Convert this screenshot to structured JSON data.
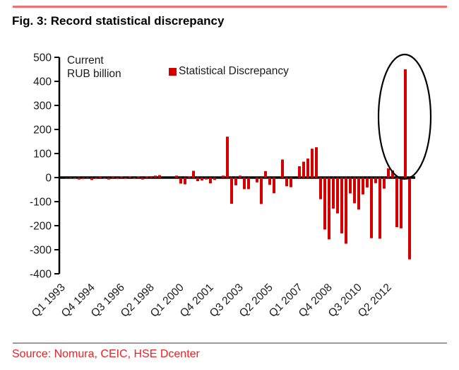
{
  "header": {
    "title": "Fig. 3: Record statistical discrepancy"
  },
  "chart": {
    "note_line1": "Current",
    "note_line2": "RUB billion",
    "legend_label": "Statistical Discrepancy"
  },
  "source": {
    "text": "Source: Nomura, CEIC, HSE Dcenter"
  },
  "colors": {
    "bar": "#D40000",
    "legend_swatch": "#D40000",
    "top_rule": "#F47070",
    "bottom_rule": "#9A9A9A",
    "source_text": "#ED2024",
    "axis": "#000000",
    "tick_text": "#1a1a1a"
  },
  "chart_data": {
    "type": "bar",
    "title": "Fig. 3: Record statistical discrepancy",
    "unit_label": "Current RUB billion",
    "legend": [
      "Statistical Discrepancy"
    ],
    "legend_position": "top-center",
    "grid": false,
    "ylim": [
      -400,
      500
    ],
    "yticks": [
      500,
      400,
      300,
      200,
      100,
      0,
      -100,
      -200,
      -300,
      -400
    ],
    "xtick_every": 7,
    "xtick_labels": [
      "Q1 1993",
      "Q4 1994",
      "Q3 1996",
      "Q2 1998",
      "Q1 2000",
      "Q4 2001",
      "Q3 2003",
      "Q2 2005",
      "Q1 2007",
      "Q4 2008",
      "Q3 2010",
      "Q2 2012"
    ],
    "categories": [
      "Q1 1993",
      "Q2 1993",
      "Q3 1993",
      "Q4 1993",
      "Q1 1994",
      "Q2 1994",
      "Q3 1994",
      "Q4 1994",
      "Q1 1995",
      "Q2 1995",
      "Q3 1995",
      "Q4 1995",
      "Q1 1996",
      "Q2 1996",
      "Q3 1996",
      "Q4 1996",
      "Q1 1997",
      "Q2 1997",
      "Q3 1997",
      "Q4 1997",
      "Q1 1998",
      "Q2 1998",
      "Q3 1998",
      "Q4 1998",
      "Q1 1999",
      "Q2 1999",
      "Q3 1999",
      "Q4 1999",
      "Q1 2000",
      "Q2 2000",
      "Q3 2000",
      "Q4 2000",
      "Q1 2001",
      "Q2 2001",
      "Q3 2001",
      "Q4 2001",
      "Q1 2002",
      "Q2 2002",
      "Q3 2002",
      "Q4 2002",
      "Q1 2003",
      "Q2 2003",
      "Q3 2003",
      "Q4 2003",
      "Q1 2004",
      "Q2 2004",
      "Q3 2004",
      "Q4 2004",
      "Q1 2005",
      "Q2 2005",
      "Q3 2005",
      "Q4 2005",
      "Q1 2006",
      "Q2 2006",
      "Q3 2006",
      "Q4 2006",
      "Q1 2007",
      "Q2 2007",
      "Q3 2007",
      "Q4 2007",
      "Q1 2008",
      "Q2 2008",
      "Q3 2008",
      "Q4 2008",
      "Q1 2009",
      "Q2 2009",
      "Q3 2009",
      "Q4 2009",
      "Q1 2010",
      "Q2 2010",
      "Q3 2010",
      "Q4 2010",
      "Q1 2011",
      "Q2 2011",
      "Q3 2011",
      "Q4 2011",
      "Q1 2012",
      "Q2 2012",
      "Q3 2012",
      "Q4 2012",
      "Q1 2013",
      "Q2 2013",
      "Q3 2013"
    ],
    "values": [
      0,
      -2,
      -3,
      -4,
      -8,
      -6,
      -3,
      -10,
      -5,
      3,
      -4,
      -8,
      6,
      -5,
      4,
      -5,
      5,
      -4,
      4,
      -8,
      5,
      6,
      8,
      10,
      0,
      0,
      0,
      8,
      -25,
      -28,
      5,
      28,
      -15,
      -12,
      -8,
      -24,
      -10,
      0,
      8,
      170,
      -109,
      -32,
      8,
      -48,
      -48,
      0,
      -20,
      -110,
      27,
      -30,
      -65,
      0,
      75,
      -36,
      -40,
      0,
      47,
      66,
      79,
      120,
      126,
      -90,
      -216,
      -257,
      -129,
      -149,
      -232,
      -275,
      -66,
      -107,
      -133,
      -70,
      -41,
      -252,
      -23,
      -254,
      -46,
      38,
      30,
      -206,
      -211,
      450,
      -340
    ],
    "annotation": {
      "type": "ellipse-highlight",
      "category": "Q2 2013",
      "value": 450,
      "meaning": "record statistical discrepancy"
    }
  }
}
